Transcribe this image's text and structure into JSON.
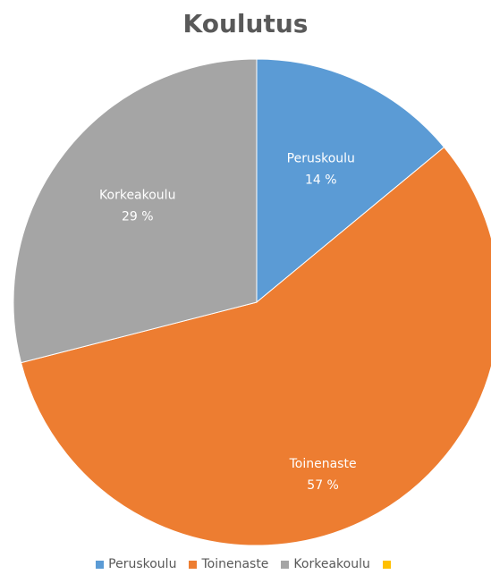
{
  "chart_data": {
    "type": "pie",
    "title": "Koulutus",
    "categories": [
      "Peruskoulu",
      "Toinenaste",
      "Korkeakoulu",
      ""
    ],
    "values": [
      14,
      57,
      29,
      0
    ],
    "data_labels": [
      "14 %",
      "57 %",
      "29 %",
      ""
    ],
    "colors": [
      "#5B9BD5",
      "#ED7D31",
      "#A5A5A5",
      "#FFC000"
    ],
    "legend_position": "bottom"
  }
}
